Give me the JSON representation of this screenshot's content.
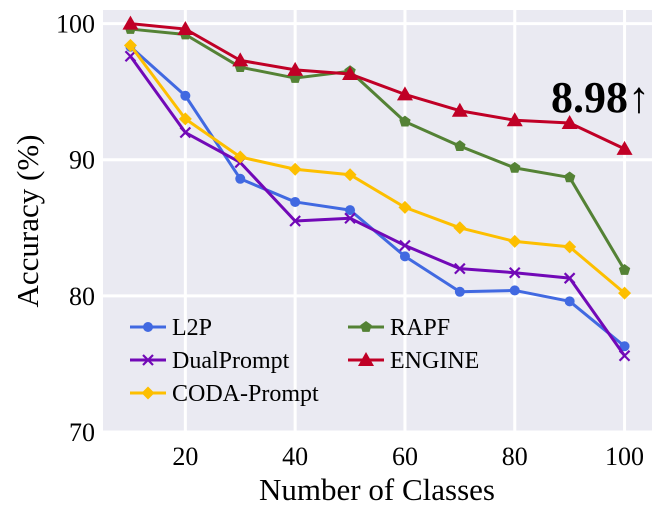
{
  "chart_data": {
    "type": "line",
    "title": "",
    "xlabel": "Number of Classes",
    "ylabel": "Accuracy (%)",
    "x": [
      10,
      20,
      30,
      40,
      50,
      60,
      70,
      80,
      90,
      100
    ],
    "xlim": [
      5,
      105
    ],
    "ylim": [
      70,
      101
    ],
    "xticks": [
      20,
      40,
      60,
      80,
      100
    ],
    "yticks": [
      70,
      80,
      90,
      100
    ],
    "xtick_labels": [
      "20",
      "40",
      "60",
      "80",
      "100"
    ],
    "ytick_labels": [
      "70",
      "80",
      "90",
      "100"
    ],
    "grid": true,
    "legend_position": "lower-left",
    "annotation": "8.98↑",
    "series": [
      {
        "name": "L2P",
        "color": "#4169e1",
        "marker": "circle",
        "values": [
          98.3,
          94.7,
          88.6,
          86.9,
          86.3,
          82.9,
          80.3,
          80.4,
          79.6,
          76.3
        ]
      },
      {
        "name": "DualPrompt",
        "color": "#7209b7",
        "marker": "x",
        "values": [
          97.6,
          92.0,
          89.8,
          85.5,
          85.7,
          83.7,
          82.0,
          81.7,
          81.3,
          75.6
        ]
      },
      {
        "name": "CODA-Prompt",
        "color": "#fdbf00",
        "marker": "diamond",
        "values": [
          98.4,
          93.0,
          90.2,
          89.3,
          88.9,
          86.5,
          85.0,
          84.0,
          83.6,
          80.2
        ]
      },
      {
        "name": "RAPF",
        "color": "#548235",
        "marker": "pentagon",
        "values": [
          99.6,
          99.2,
          96.8,
          96.0,
          96.5,
          92.8,
          91.0,
          89.4,
          88.7,
          81.9
        ]
      },
      {
        "name": "ENGINE",
        "color": "#c00026",
        "marker": "triangle",
        "values": [
          100.0,
          99.6,
          97.3,
          96.6,
          96.3,
          94.8,
          93.6,
          92.9,
          92.7,
          90.8
        ]
      }
    ]
  }
}
